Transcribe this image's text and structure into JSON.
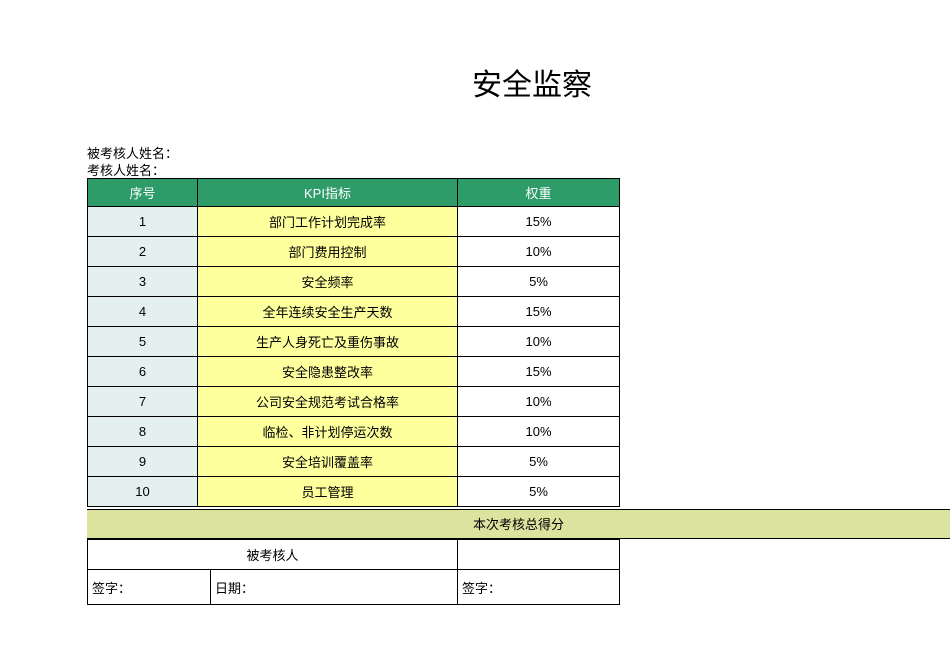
{
  "title": "安全监察",
  "meta": {
    "line1": "被考核人姓名：",
    "line2": "考核人姓名："
  },
  "headers": {
    "seq": "序号",
    "kpi": "KPI指标",
    "weight": "权重"
  },
  "rows": [
    {
      "seq": "1",
      "kpi": "部门工作计划完成率",
      "weight": "15%"
    },
    {
      "seq": "2",
      "kpi": "部门费用控制",
      "weight": "10%"
    },
    {
      "seq": "3",
      "kpi": "安全频率",
      "weight": "5%"
    },
    {
      "seq": "4",
      "kpi": "全年连续安全生产天数",
      "weight": "15%"
    },
    {
      "seq": "5",
      "kpi": "生产人身死亡及重伤事故",
      "weight": "10%"
    },
    {
      "seq": "6",
      "kpi": "安全隐患整改率",
      "weight": "15%"
    },
    {
      "seq": "7",
      "kpi": "公司安全规范考试合格率",
      "weight": "10%"
    },
    {
      "seq": "8",
      "kpi": "临检、非计划停运次数",
      "weight": "10%"
    },
    {
      "seq": "9",
      "kpi": "安全培训覆盖率",
      "weight": "5%"
    },
    {
      "seq": "10",
      "kpi": "员工管理",
      "weight": "5%"
    }
  ],
  "total_label": "本次考核总得分",
  "second": {
    "person_label": "被考核人"
  },
  "sign": {
    "sig": "签字：",
    "date": "日期：",
    "sig2": "签字："
  },
  "colors": {
    "header_bg": "#2e9c69",
    "seq_bg": "#e4eff0",
    "kpi_bg": "#feff9d",
    "total_bg": "#dbe39f"
  }
}
